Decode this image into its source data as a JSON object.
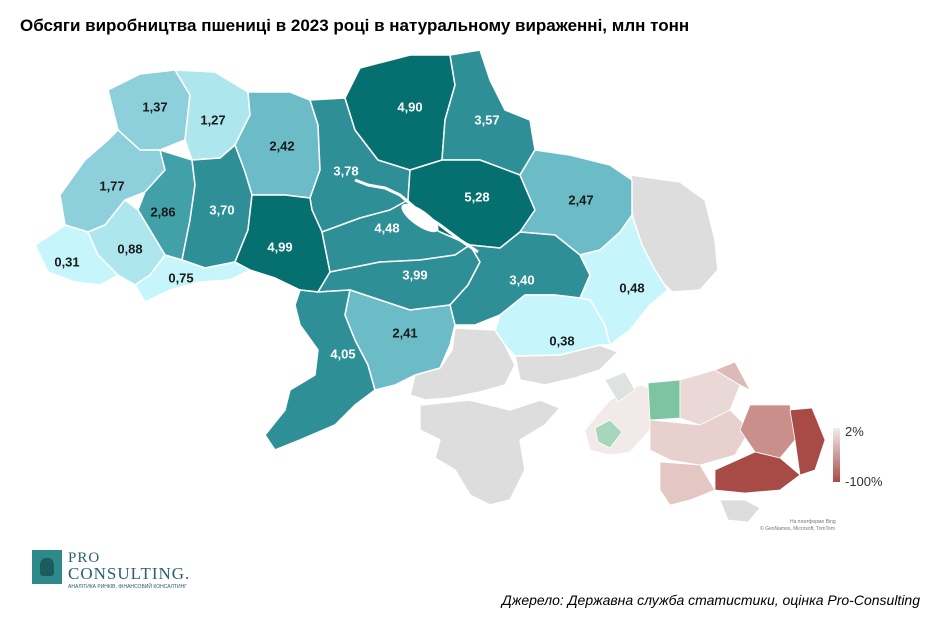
{
  "title": "Обсяги виробництва пшениці в 2023 році в натуральному вираженні, млн тонн",
  "source": "Джерело: Державна служба статистики, оцінка Pro-Consulting",
  "logo": {
    "top": "PRO",
    "main": "CONSULTING.",
    "subtitle": "АНАЛІТИКА РИНКІВ, ФІНАНСОВИЙ КОНСАЛТИНГ"
  },
  "colors": {
    "darkest": "#05706f",
    "dark": "#2e8f97",
    "medium": "#41a0a8",
    "light_medium": "#6bbcc6",
    "light": "#8dd0dc",
    "pale": "#aee6ee",
    "palest": "#c6f6fb",
    "occupied": "#dddddd",
    "label_dark_bg": "#ffffff",
    "label_light_bg": "#1a1a1a"
  },
  "regions": [
    {
      "id": "volyn",
      "value": "1,37",
      "shade": "light"
    },
    {
      "id": "rivne",
      "value": "1,27",
      "shade": "pale"
    },
    {
      "id": "zhytomyr",
      "value": "2,42",
      "shade": "light_medium"
    },
    {
      "id": "kyiv",
      "value": "3,78",
      "shade": "dark"
    },
    {
      "id": "chernihiv",
      "value": "4,90",
      "shade": "darkest"
    },
    {
      "id": "sumy",
      "value": "3,57",
      "shade": "dark"
    },
    {
      "id": "poltava",
      "value": "5,28",
      "shade": "darkest"
    },
    {
      "id": "kharkiv",
      "value": "2,47",
      "shade": "light_medium"
    },
    {
      "id": "lviv",
      "value": "1,77",
      "shade": "light"
    },
    {
      "id": "ternopil",
      "value": "2,86",
      "shade": "medium"
    },
    {
      "id": "khmelnytskyi",
      "value": "3,70",
      "shade": "dark"
    },
    {
      "id": "vinnytsia",
      "value": "4,99",
      "shade": "darkest"
    },
    {
      "id": "cherkasy",
      "value": "4,48",
      "shade": "dark"
    },
    {
      "id": "kirovohrad",
      "value": "3,99",
      "shade": "dark"
    },
    {
      "id": "dnipropetrovsk",
      "value": "3,40",
      "shade": "dark"
    },
    {
      "id": "luhansk",
      "value": "0,48",
      "shade": "palest"
    },
    {
      "id": "zakarpattia",
      "value": "0,31",
      "shade": "palest"
    },
    {
      "id": "ivano_frankivsk",
      "value": "0,88",
      "shade": "pale"
    },
    {
      "id": "chernivtsi",
      "value": "0,75",
      "shade": "palest"
    },
    {
      "id": "odesa",
      "value": "4,05",
      "shade": "dark"
    },
    {
      "id": "mykolaiv",
      "value": "2,41",
      "shade": "light_medium"
    },
    {
      "id": "zaporizhzhia",
      "value": "0,38",
      "shade": "palest"
    }
  ],
  "inset_legend": {
    "max_label": "2%",
    "min_label": "-100%",
    "color_max": "#f2ecec",
    "color_min": "#a84a46",
    "credit_1": "На платформе Bing",
    "credit_2": "© GeoNames, Microsoft, TomTom"
  }
}
